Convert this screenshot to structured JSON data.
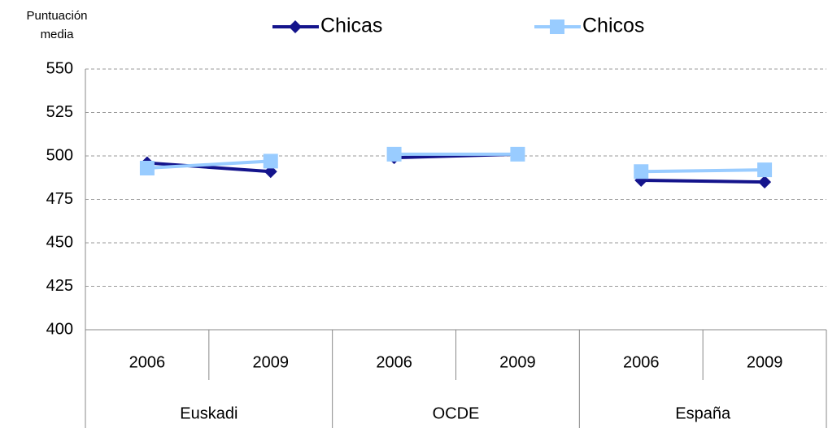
{
  "chart_data": {
    "type": "line",
    "ylabel": [
      "Puntuación",
      "media"
    ],
    "groups": [
      {
        "name": "Euskadi",
        "categories": [
          "2006",
          "2009"
        ]
      },
      {
        "name": "OCDE",
        "categories": [
          "2006",
          "2009"
        ]
      },
      {
        "name": "España",
        "categories": [
          "2006",
          "2009"
        ]
      }
    ],
    "series": [
      {
        "name": "Chicas",
        "color": "#14148c",
        "marker": "diamond",
        "values": [
          [
            496,
            491
          ],
          [
            499,
            501
          ],
          [
            486,
            485
          ]
        ]
      },
      {
        "name": "Chicos",
        "color": "#99ccff",
        "marker": "square",
        "values": [
          [
            493,
            497
          ],
          [
            501,
            501
          ],
          [
            491,
            492
          ]
        ]
      }
    ],
    "ylim": [
      400,
      550
    ],
    "yticks": [
      400,
      425,
      450,
      475,
      500,
      525,
      550
    ],
    "grid": true,
    "legend": "top"
  }
}
